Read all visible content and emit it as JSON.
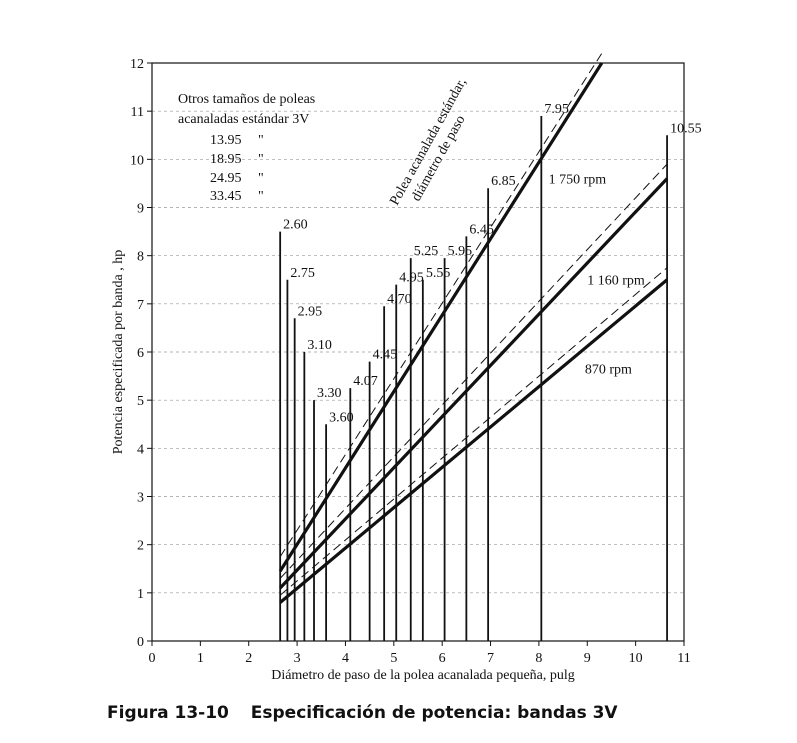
{
  "chart_data": {
    "type": "line",
    "xlabel": "Diámetro de paso de la polea acanalada pequeña, pulg",
    "ylabel": "Potencia especificada por banda , hp",
    "xlim": [
      0,
      11
    ],
    "ylim": [
      0,
      12
    ],
    "x_ticks": [
      "0",
      "1",
      "2",
      "3",
      "4",
      "5",
      "6",
      "7",
      "8",
      "9",
      "10",
      "11"
    ],
    "y_ticks": [
      "0",
      "1",
      "2",
      "3",
      "4",
      "5",
      "6",
      "7",
      "8",
      "9",
      "10",
      "11",
      "12"
    ],
    "grid": "horizontal dashed",
    "series": [
      {
        "name": "1 750 rpm",
        "x": [
          2.65,
          9.3
        ],
        "y": [
          1.45,
          12.0
        ],
        "dashed_x": [
          2.65,
          9.3
        ],
        "dashed_y": [
          1.75,
          12.2
        ]
      },
      {
        "name": "1 160 rpm",
        "x": [
          2.65,
          10.65
        ],
        "y": [
          1.1,
          9.6
        ],
        "dashed_x": [
          2.65,
          10.65
        ],
        "dashed_y": [
          1.3,
          9.9
        ]
      },
      {
        "name": "870 rpm",
        "x": [
          2.65,
          10.65
        ],
        "y": [
          0.8,
          7.5
        ],
        "dashed_x": [
          2.65,
          10.65
        ],
        "dashed_y": [
          0.95,
          7.75
        ]
      }
    ],
    "standard_sheaves": [
      {
        "label": "2.60",
        "x": 2.65,
        "top": 8.5
      },
      {
        "label": "2.75",
        "x": 2.8,
        "top": 7.5
      },
      {
        "label": "2.95",
        "x": 2.95,
        "top": 6.7
      },
      {
        "label": "3.10",
        "x": 3.15,
        "top": 6.0
      },
      {
        "label": "3.30",
        "x": 3.35,
        "top": 5.0
      },
      {
        "label": "3.60",
        "x": 3.6,
        "top": 4.5
      },
      {
        "label": "4.07",
        "x": 4.1,
        "top": 5.25
      },
      {
        "label": "4.45",
        "x": 4.5,
        "top": 5.8
      },
      {
        "label": "4.70",
        "x": 4.8,
        "top": 6.95
      },
      {
        "label": "4.95",
        "x": 5.05,
        "top": 7.4
      },
      {
        "label": "5.25",
        "x": 5.35,
        "top": 7.95
      },
      {
        "label": "5.55",
        "x": 5.6,
        "top": 7.5
      },
      {
        "label": "5.95",
        "x": 6.05,
        "top": 7.95
      },
      {
        "label": "6.45",
        "x": 6.5,
        "top": 8.4
      },
      {
        "label": "6.85",
        "x": 6.95,
        "top": 9.4
      },
      {
        "label": "7.95",
        "x": 8.05,
        "top": 10.9
      },
      {
        "label": "10.55",
        "x": 10.65,
        "top": 10.5
      }
    ],
    "annotations": {
      "other_sizes_title_1": "Otros tamaños de poleas",
      "other_sizes_title_2": "acanaladas estándar 3V",
      "other_sizes": [
        "13.95",
        "18.95",
        "24.95",
        "33.45"
      ],
      "ditto": "\"",
      "rotated_label_1": "Polea acanalada estándar,",
      "rotated_label_2": "diámetro de paso"
    }
  },
  "caption": {
    "number": "Figura 13-10",
    "text": "Especificación de potencia: bandas 3V"
  }
}
